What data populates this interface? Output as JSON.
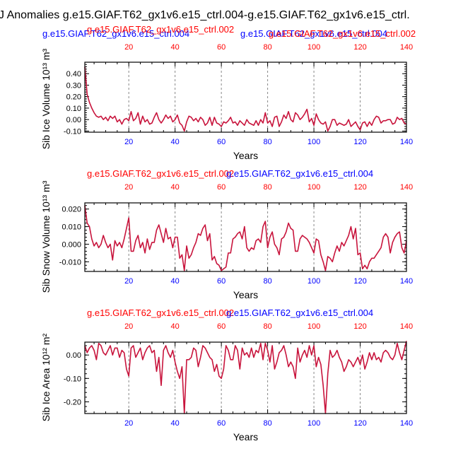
{
  "figure": {
    "title": "J Anomalies g.e15.GIAF.T62_gx1v6.e15_ctrl.004-g.e15.GIAF.T62_gx1v6.e15_ctrl.",
    "colors": {
      "curve": "#c8143c",
      "top_axis_red": "#ff0000",
      "bottom_axis_blue": "#0000ff",
      "run_label_blue": "#0000ff",
      "run_label_red": "#ff0000",
      "grid": "#888888"
    }
  },
  "chart_data": [
    {
      "type": "line",
      "title": "",
      "xlabel": "Years",
      "ylabel": "Sib Ice Volume 10¹³ m³",
      "xlim": [
        1,
        140
      ],
      "ylim": [
        -0.11,
        0.5
      ],
      "x_ticks": [
        20,
        40,
        60,
        80,
        100,
        120,
        140
      ],
      "x_ticks_top": [
        20,
        40,
        60,
        80,
        100,
        120,
        140
      ],
      "y_ticks": [
        "0.40",
        "0.30",
        "0.20",
        "0.10",
        "0.00",
        "-0.10"
      ],
      "y_tick_values": [
        0.4,
        0.3,
        0.2,
        0.1,
        0.0,
        -0.1
      ],
      "grid_x": true,
      "run_labels": {
        "blue": "g.e15.GIAF.T62_gx1v6.e15_ctrl.004",
        "red": "g.e15.GIAF.T62_gx1v6.e15_ctrl.002",
        "red2": "g.e15.GIAF.T62_gx1v6.e15_ctrl.002"
      },
      "series": [
        {
          "x": [
            1,
            2,
            3,
            4,
            5,
            6,
            7,
            8,
            9,
            10,
            11,
            12,
            13,
            14,
            15,
            16,
            17,
            18,
            19,
            20,
            21,
            22,
            23,
            24,
            25,
            26,
            27,
            28,
            29,
            30,
            31,
            32,
            33,
            34,
            35,
            36,
            37,
            38,
            39,
            40,
            41,
            42,
            43,
            44,
            45,
            46,
            47,
            48,
            49,
            50,
            51,
            52,
            53,
            54,
            55,
            56,
            57,
            58,
            59,
            60,
            61,
            62,
            63,
            64,
            65,
            66,
            67,
            68,
            69,
            70,
            71,
            72,
            73,
            74,
            75,
            76,
            77,
            78,
            79,
            80,
            81,
            82,
            83,
            84,
            85,
            86,
            87,
            88,
            89,
            90,
            91,
            92,
            93,
            94,
            95,
            96,
            97,
            98,
            99,
            100,
            101,
            102,
            103,
            104,
            105,
            106,
            107,
            108,
            109,
            110,
            111,
            112,
            113,
            114,
            115,
            116,
            117,
            118,
            119,
            120,
            121,
            122,
            123,
            124,
            125,
            126,
            127,
            128,
            129,
            130,
            131,
            132,
            133,
            134,
            135,
            136,
            137,
            138,
            139,
            140
          ],
          "values": [
            0.46,
            0.22,
            0.15,
            0.1,
            0.06,
            0.03,
            0.02,
            0.03,
            0.0,
            0.02,
            -0.01,
            0.03,
            0.01,
            0.03,
            -0.02,
            0.0,
            -0.04,
            0.0,
            0.01,
            -0.01,
            0.07,
            -0.01,
            0.01,
            0.06,
            -0.04,
            0.03,
            -0.02,
            0.0,
            -0.04,
            -0.03,
            0.02,
            0.06,
            0.0,
            -0.03,
            0.0,
            0.04,
            0.01,
            0.03,
            -0.02,
            0.0,
            0.04,
            -0.03,
            -0.05,
            -0.1,
            -0.02,
            0.03,
            0.02,
            -0.01,
            0.01,
            -0.02,
            0.02,
            0.0,
            -0.05,
            -0.03,
            0.02,
            -0.05,
            0.02,
            -0.03,
            -0.04,
            -0.06,
            -0.02,
            -0.03,
            -0.01,
            0.02,
            -0.03,
            -0.02,
            -0.05,
            -0.01,
            -0.03,
            -0.05,
            0.0,
            -0.03,
            -0.04,
            -0.05,
            -0.01,
            -0.05,
            0.0,
            -0.03,
            0.06,
            -0.03,
            -0.01,
            -0.06,
            0.02,
            0.03,
            -0.06,
            -0.02,
            0.04,
            0.01,
            0.07,
            0.0,
            -0.02,
            0.06,
            0.04,
            0.0,
            0.02,
            0.05,
            0.09,
            -0.02,
            0.01,
            -0.05,
            0.05,
            0.0,
            -0.03,
            -0.04,
            -0.02,
            -0.1,
            -0.06,
            0.0,
            0.0,
            -0.05,
            -0.03,
            -0.04,
            -0.05,
            -0.04,
            0.0,
            -0.06,
            -0.04,
            -0.02,
            -0.06,
            -0.09,
            -0.03,
            -0.02,
            -0.06,
            -0.02,
            -0.05,
            0.0,
            0.03,
            0.02,
            -0.03,
            -0.01,
            -0.01,
            0.0,
            0.0,
            -0.04,
            -0.03,
            0.02,
            0.0,
            0.01,
            -0.03,
            -0.04
          ]
        }
      ]
    },
    {
      "type": "line",
      "title": "",
      "xlabel": "Years",
      "ylabel": "Sib Snow Volume 10¹³ m³",
      "xlim": [
        1,
        140
      ],
      "ylim": [
        -0.0155,
        0.0235
      ],
      "x_ticks": [
        20,
        40,
        60,
        80,
        100,
        120,
        140
      ],
      "x_ticks_top": [
        20,
        40,
        60,
        80,
        100,
        120,
        140
      ],
      "y_ticks": [
        "0.020",
        "0.010",
        "0.000",
        "-0.010"
      ],
      "y_tick_values": [
        0.02,
        0.01,
        0.0,
        -0.01
      ],
      "grid_x": true,
      "run_labels": {
        "blue": "g.e15.GIAF.T62_gx1v6.e15_ctrl.004",
        "red": "g.e15.GIAF.T62_gx1v6.e15_ctrl.002"
      },
      "series": [
        {
          "x": [
            1,
            2,
            3,
            4,
            5,
            6,
            7,
            8,
            9,
            10,
            11,
            12,
            13,
            14,
            15,
            16,
            17,
            18,
            19,
            20,
            21,
            22,
            23,
            24,
            25,
            26,
            27,
            28,
            29,
            30,
            31,
            32,
            33,
            34,
            35,
            36,
            37,
            38,
            39,
            40,
            41,
            42,
            43,
            44,
            45,
            46,
            47,
            48,
            49,
            50,
            51,
            52,
            53,
            54,
            55,
            56,
            57,
            58,
            59,
            60,
            61,
            62,
            63,
            64,
            65,
            66,
            67,
            68,
            69,
            70,
            71,
            72,
            73,
            74,
            75,
            76,
            77,
            78,
            79,
            80,
            81,
            82,
            83,
            84,
            85,
            86,
            87,
            88,
            89,
            90,
            91,
            92,
            93,
            94,
            95,
            96,
            97,
            98,
            99,
            100,
            101,
            102,
            103,
            104,
            105,
            106,
            107,
            108,
            109,
            110,
            111,
            112,
            113,
            114,
            115,
            116,
            117,
            118,
            119,
            120,
            121,
            122,
            123,
            124,
            125,
            126,
            127,
            128,
            129,
            130,
            131,
            132,
            133,
            134,
            135,
            136,
            137,
            138,
            139,
            140
          ],
          "values": [
            0.022,
            0.012,
            0.01,
            0.003,
            -0.001,
            0.001,
            -0.002,
            0.0,
            0.005,
            0.001,
            -0.002,
            0.0,
            -0.009,
            0.002,
            -0.001,
            0.001,
            -0.002,
            0.003,
            0.009,
            0.015,
            -0.004,
            -0.004,
            0.002,
            0.005,
            -0.002,
            0.001,
            -0.005,
            0.003,
            -0.003,
            0.001,
            0.001,
            0.008,
            0.011,
            0.006,
            0.001,
            0.009,
            0.003,
            0.004,
            -0.002,
            0.004,
            0.004,
            -0.008,
            -0.006,
            -0.015,
            -0.001,
            -0.008,
            -0.006,
            -0.002,
            0.001,
            0.006,
            0.005,
            0.009,
            0.011,
            0.002,
            0.006,
            -0.009,
            -0.007,
            -0.011,
            -0.012,
            -0.015,
            -0.014,
            -0.013,
            -0.005,
            -0.005,
            0.003,
            0.004,
            0.006,
            0.007,
            0.003,
            0.01,
            -0.002,
            -0.004,
            -0.002,
            -0.003,
            0.002,
            0.003,
            0.001,
            0.01,
            0.013,
            -0.002,
            0.004,
            0.007,
            0.0,
            -0.002,
            -0.006,
            0.003,
            0.004,
            0.007,
            0.012,
            0.009,
            0.008,
            -0.004,
            -0.004,
            0.003,
            0.005,
            0.004,
            0.003,
            0.001,
            -0.002,
            -0.005,
            0.003,
            0.002,
            -0.006,
            -0.01,
            -0.015,
            -0.007,
            -0.008,
            -0.01,
            -0.005,
            -0.001,
            -0.004,
            0.001,
            -0.001,
            0.002,
            0.005,
            0.01,
            0.003,
            0.009,
            -0.006,
            -0.005,
            -0.014,
            -0.012,
            -0.014,
            -0.01,
            -0.008,
            -0.008,
            -0.006,
            -0.004,
            -0.002,
            0.004,
            0.006,
            0.004,
            -0.005,
            0.001,
            0.004,
            0.006,
            0.007,
            -0.002,
            -0.005,
            0.002
          ]
        }
      ]
    },
    {
      "type": "line",
      "title": "",
      "xlabel": "Years",
      "ylabel": "Sib Ice Area 10¹² m²",
      "xlim": [
        1,
        140
      ],
      "ylim": [
        -0.25,
        0.055
      ],
      "x_ticks": [
        20,
        40,
        60,
        80,
        100,
        120,
        140
      ],
      "x_ticks_top": [
        20,
        40,
        60,
        80,
        100,
        120,
        140
      ],
      "y_ticks": [
        "0.00",
        "-0.10",
        "-0.20"
      ],
      "y_tick_values": [
        0.0,
        -0.1,
        -0.2
      ],
      "grid_x": true,
      "run_labels": {
        "blue": "g.e15.GIAF.T62_gx1v6.e15_ctrl.004",
        "red": "g.e15.GIAF.T62_gx1v6.e15_ctrl.002"
      },
      "series": [
        {
          "x": [
            1,
            2,
            3,
            4,
            5,
            6,
            7,
            8,
            9,
            10,
            11,
            12,
            13,
            14,
            15,
            16,
            17,
            18,
            19,
            20,
            21,
            22,
            23,
            24,
            25,
            26,
            27,
            28,
            29,
            30,
            31,
            32,
            33,
            34,
            35,
            36,
            37,
            38,
            39,
            40,
            41,
            42,
            43,
            44,
            45,
            46,
            47,
            48,
            49,
            50,
            51,
            52,
            53,
            54,
            55,
            56,
            57,
            58,
            59,
            60,
            61,
            62,
            63,
            64,
            65,
            66,
            67,
            68,
            69,
            70,
            71,
            72,
            73,
            74,
            75,
            76,
            77,
            78,
            79,
            80,
            81,
            82,
            83,
            84,
            85,
            86,
            87,
            88,
            89,
            90,
            91,
            92,
            93,
            94,
            95,
            96,
            97,
            98,
            99,
            100,
            101,
            102,
            103,
            104,
            105,
            106,
            107,
            108,
            109,
            110,
            111,
            112,
            113,
            114,
            115,
            116,
            117,
            118,
            119,
            120,
            121,
            122,
            123,
            124,
            125,
            126,
            127,
            128,
            129,
            130,
            131,
            132,
            133,
            134,
            135,
            136,
            137,
            138,
            139,
            140
          ],
          "values": [
            0.04,
            0.01,
            0.03,
            0.04,
            0.02,
            -0.02,
            0.05,
            0.04,
            0.01,
            0.0,
            0.02,
            0.04,
            0.0,
            0.03,
            0.03,
            -0.01,
            0.02,
            0.01,
            -0.06,
            -0.09,
            0.03,
            0.04,
            -0.01,
            0.01,
            0.03,
            -0.02,
            0.01,
            0.03,
            0.04,
            0.01,
            0.02,
            -0.07,
            -0.01,
            -0.13,
            0.02,
            0.04,
            0.01,
            -0.01,
            0.02,
            -0.03,
            -0.07,
            -0.1,
            -0.05,
            -0.25,
            -0.02,
            -0.02,
            -0.01,
            0.03,
            0.02,
            -0.05,
            -0.01,
            0.04,
            0.03,
            0.01,
            -0.01,
            -0.02,
            -0.07,
            -0.04,
            -0.09,
            -0.1,
            -0.06,
            0.04,
            0.02,
            -0.02,
            -0.02,
            0.04,
            0.02,
            -0.06,
            0.03,
            0.0,
            0.01,
            -0.01,
            0.03,
            -0.01,
            0.02,
            0.01,
            0.05,
            -0.02,
            0.05,
            0.02,
            -0.03,
            0.04,
            -0.06,
            -0.03,
            0.01,
            0.02,
            0.04,
            0.0,
            -0.05,
            -0.03,
            -0.05,
            -0.1,
            0.03,
            -0.03,
            0.0,
            0.02,
            -0.01,
            0.04,
            0.0,
            0.04,
            -0.05,
            -0.01,
            -0.04,
            -0.13,
            -0.25,
            -0.08,
            0.02,
            -0.01,
            0.0,
            0.02,
            -0.01,
            -0.03,
            -0.07,
            -0.05,
            -0.02,
            -0.03,
            -0.05,
            -0.03,
            -0.01,
            -0.04,
            0.0,
            -0.06,
            -0.03,
            0.01,
            -0.02,
            0.01,
            -0.02,
            -0.01,
            -0.03,
            0.01,
            0.02,
            0.01,
            -0.01,
            -0.02,
            0.0,
            0.05,
            0.01,
            -0.02,
            0.02,
            0.06
          ]
        }
      ]
    }
  ]
}
